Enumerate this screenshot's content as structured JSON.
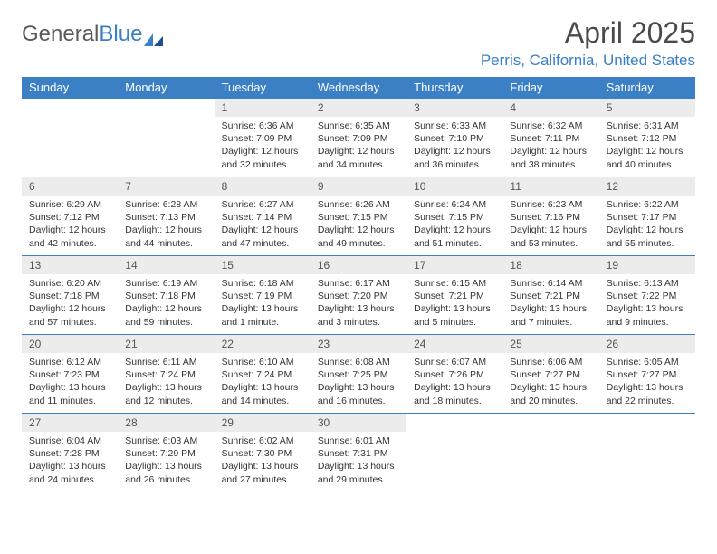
{
  "brand": {
    "part1": "General",
    "part2": "Blue"
  },
  "title": "April 2025",
  "location": "Perris, California, United States",
  "header_bg": "#3b7fc4",
  "daynum_bg": "#ececec",
  "border_color": "#3b7fc4",
  "weekdays": [
    "Sunday",
    "Monday",
    "Tuesday",
    "Wednesday",
    "Thursday",
    "Friday",
    "Saturday"
  ],
  "weeks": [
    [
      null,
      null,
      {
        "n": "1",
        "sr": "6:36 AM",
        "ss": "7:09 PM",
        "dl": "12 hours and 32 minutes."
      },
      {
        "n": "2",
        "sr": "6:35 AM",
        "ss": "7:09 PM",
        "dl": "12 hours and 34 minutes."
      },
      {
        "n": "3",
        "sr": "6:33 AM",
        "ss": "7:10 PM",
        "dl": "12 hours and 36 minutes."
      },
      {
        "n": "4",
        "sr": "6:32 AM",
        "ss": "7:11 PM",
        "dl": "12 hours and 38 minutes."
      },
      {
        "n": "5",
        "sr": "6:31 AM",
        "ss": "7:12 PM",
        "dl": "12 hours and 40 minutes."
      }
    ],
    [
      {
        "n": "6",
        "sr": "6:29 AM",
        "ss": "7:12 PM",
        "dl": "12 hours and 42 minutes."
      },
      {
        "n": "7",
        "sr": "6:28 AM",
        "ss": "7:13 PM",
        "dl": "12 hours and 44 minutes."
      },
      {
        "n": "8",
        "sr": "6:27 AM",
        "ss": "7:14 PM",
        "dl": "12 hours and 47 minutes."
      },
      {
        "n": "9",
        "sr": "6:26 AM",
        "ss": "7:15 PM",
        "dl": "12 hours and 49 minutes."
      },
      {
        "n": "10",
        "sr": "6:24 AM",
        "ss": "7:15 PM",
        "dl": "12 hours and 51 minutes."
      },
      {
        "n": "11",
        "sr": "6:23 AM",
        "ss": "7:16 PM",
        "dl": "12 hours and 53 minutes."
      },
      {
        "n": "12",
        "sr": "6:22 AM",
        "ss": "7:17 PM",
        "dl": "12 hours and 55 minutes."
      }
    ],
    [
      {
        "n": "13",
        "sr": "6:20 AM",
        "ss": "7:18 PM",
        "dl": "12 hours and 57 minutes."
      },
      {
        "n": "14",
        "sr": "6:19 AM",
        "ss": "7:18 PM",
        "dl": "12 hours and 59 minutes."
      },
      {
        "n": "15",
        "sr": "6:18 AM",
        "ss": "7:19 PM",
        "dl": "13 hours and 1 minute."
      },
      {
        "n": "16",
        "sr": "6:17 AM",
        "ss": "7:20 PM",
        "dl": "13 hours and 3 minutes."
      },
      {
        "n": "17",
        "sr": "6:15 AM",
        "ss": "7:21 PM",
        "dl": "13 hours and 5 minutes."
      },
      {
        "n": "18",
        "sr": "6:14 AM",
        "ss": "7:21 PM",
        "dl": "13 hours and 7 minutes."
      },
      {
        "n": "19",
        "sr": "6:13 AM",
        "ss": "7:22 PM",
        "dl": "13 hours and 9 minutes."
      }
    ],
    [
      {
        "n": "20",
        "sr": "6:12 AM",
        "ss": "7:23 PM",
        "dl": "13 hours and 11 minutes."
      },
      {
        "n": "21",
        "sr": "6:11 AM",
        "ss": "7:24 PM",
        "dl": "13 hours and 12 minutes."
      },
      {
        "n": "22",
        "sr": "6:10 AM",
        "ss": "7:24 PM",
        "dl": "13 hours and 14 minutes."
      },
      {
        "n": "23",
        "sr": "6:08 AM",
        "ss": "7:25 PM",
        "dl": "13 hours and 16 minutes."
      },
      {
        "n": "24",
        "sr": "6:07 AM",
        "ss": "7:26 PM",
        "dl": "13 hours and 18 minutes."
      },
      {
        "n": "25",
        "sr": "6:06 AM",
        "ss": "7:27 PM",
        "dl": "13 hours and 20 minutes."
      },
      {
        "n": "26",
        "sr": "6:05 AM",
        "ss": "7:27 PM",
        "dl": "13 hours and 22 minutes."
      }
    ],
    [
      {
        "n": "27",
        "sr": "6:04 AM",
        "ss": "7:28 PM",
        "dl": "13 hours and 24 minutes."
      },
      {
        "n": "28",
        "sr": "6:03 AM",
        "ss": "7:29 PM",
        "dl": "13 hours and 26 minutes."
      },
      {
        "n": "29",
        "sr": "6:02 AM",
        "ss": "7:30 PM",
        "dl": "13 hours and 27 minutes."
      },
      {
        "n": "30",
        "sr": "6:01 AM",
        "ss": "7:31 PM",
        "dl": "13 hours and 29 minutes."
      },
      null,
      null,
      null
    ]
  ],
  "labels": {
    "sunrise": "Sunrise: ",
    "sunset": "Sunset: ",
    "daylight": "Daylight: "
  }
}
